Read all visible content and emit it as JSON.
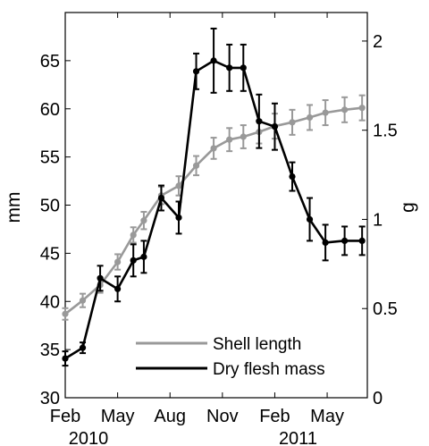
{
  "chart_data": {
    "type": "line",
    "title": "",
    "x_ticks": [
      {
        "label": "Feb",
        "sublabel": "2010",
        "month": 0
      },
      {
        "label": "May",
        "sublabel": "",
        "month": 3
      },
      {
        "label": "Aug",
        "sublabel": "",
        "month": 6
      },
      {
        "label": "Nov",
        "sublabel": "",
        "month": 9
      },
      {
        "label": "Feb",
        "sublabel": "2011",
        "month": 12
      },
      {
        "label": "May",
        "sublabel": "",
        "month": 15
      }
    ],
    "xlim": [
      0,
      17.3
    ],
    "y_left": {
      "label": "mm",
      "lim": [
        30,
        70
      ],
      "ticks": [
        30,
        35,
        40,
        45,
        50,
        55,
        60,
        65
      ]
    },
    "y_right": {
      "label": "g",
      "lim": [
        0,
        2.16
      ],
      "ticks": [
        0,
        0.5,
        1,
        1.5,
        2
      ],
      "tick_labels": [
        "0",
        "0.5",
        "1",
        "1.5",
        "2"
      ]
    },
    "legend_position": "bottom-right",
    "grid": false,
    "series": [
      {
        "name": "Shell length",
        "axis": "left",
        "color": "#999999",
        "x": [
          0.0,
          1.0,
          2.0,
          3.0,
          3.9,
          4.5,
          5.5,
          6.5,
          7.5,
          8.5,
          9.4,
          10.2,
          11.1,
          12.0,
          13.0,
          14.0,
          14.9,
          16.0,
          17.0
        ],
        "y": [
          38.7,
          40.1,
          41.7,
          44.1,
          46.9,
          48.4,
          51.0,
          52.0,
          54.1,
          55.9,
          56.8,
          57.1,
          57.6,
          58.2,
          58.6,
          59.1,
          59.6,
          59.9,
          60.1
        ],
        "err": [
          0.6,
          0.7,
          0.8,
          0.8,
          0.8,
          0.9,
          0.9,
          1.0,
          1.0,
          1.1,
          1.2,
          1.2,
          1.2,
          1.3,
          1.3,
          1.3,
          1.3,
          1.3,
          1.3
        ]
      },
      {
        "name": "Dry flesh mass",
        "axis": "right",
        "color": "#000000",
        "x": [
          0.0,
          1.0,
          2.0,
          3.0,
          3.9,
          4.5,
          5.5,
          6.5,
          7.5,
          8.5,
          9.4,
          10.2,
          11.1,
          12.0,
          13.0,
          14.0,
          14.9,
          16.0,
          17.0
        ],
        "y": [
          0.22,
          0.28,
          0.67,
          0.61,
          0.77,
          0.79,
          1.12,
          1.01,
          1.83,
          1.89,
          1.85,
          1.85,
          1.55,
          1.52,
          1.24,
          1.0,
          0.87,
          0.88,
          0.88
        ],
        "err": [
          0.04,
          0.03,
          0.07,
          0.07,
          0.09,
          0.09,
          0.07,
          0.09,
          0.1,
          0.18,
          0.13,
          0.13,
          0.15,
          0.13,
          0.08,
          0.12,
          0.1,
          0.08,
          0.08
        ]
      }
    ]
  }
}
